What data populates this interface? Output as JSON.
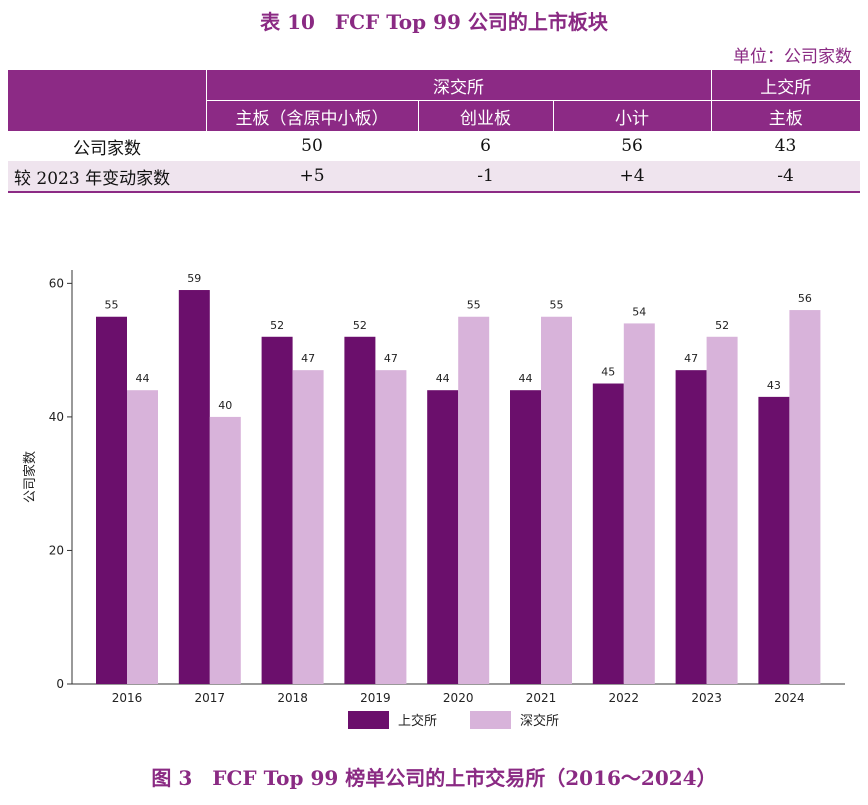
{
  "table": {
    "title": "表 10　FCF Top 99 公司的上市板块",
    "unit": "单位：公司家数",
    "group_headers": [
      "深交所",
      "上交所"
    ],
    "sub_headers": [
      "主板（含原中小板）",
      "创业板",
      "小计",
      "主板"
    ],
    "rows": [
      {
        "label": "公司家数",
        "values": [
          "50",
          "6",
          "56",
          "43"
        ]
      },
      {
        "label": "较 2023 年变动家数",
        "values": [
          "+5",
          "-1",
          "+4",
          "-4"
        ]
      }
    ]
  },
  "chart_data": {
    "type": "bar",
    "title": "",
    "xlabel": "",
    "ylabel": "公司家数",
    "ylim": [
      0,
      62
    ],
    "yticks": [
      0,
      20,
      40,
      60
    ],
    "grid": false,
    "legend_position": "bottom",
    "categories": [
      "2016",
      "2017",
      "2018",
      "2019",
      "2020",
      "2021",
      "2022",
      "2023",
      "2024"
    ],
    "series": [
      {
        "name": "上交所",
        "color": "#6b0f6c",
        "values": [
          55,
          59,
          52,
          52,
          44,
          44,
          45,
          47,
          43
        ]
      },
      {
        "name": "深交所",
        "color": "#d8b3da",
        "values": [
          44,
          40,
          47,
          47,
          55,
          55,
          54,
          52,
          56
        ]
      }
    ]
  },
  "figure_caption": "图 3　FCF Top 99 榜单公司的上市交易所（2016～2024）"
}
